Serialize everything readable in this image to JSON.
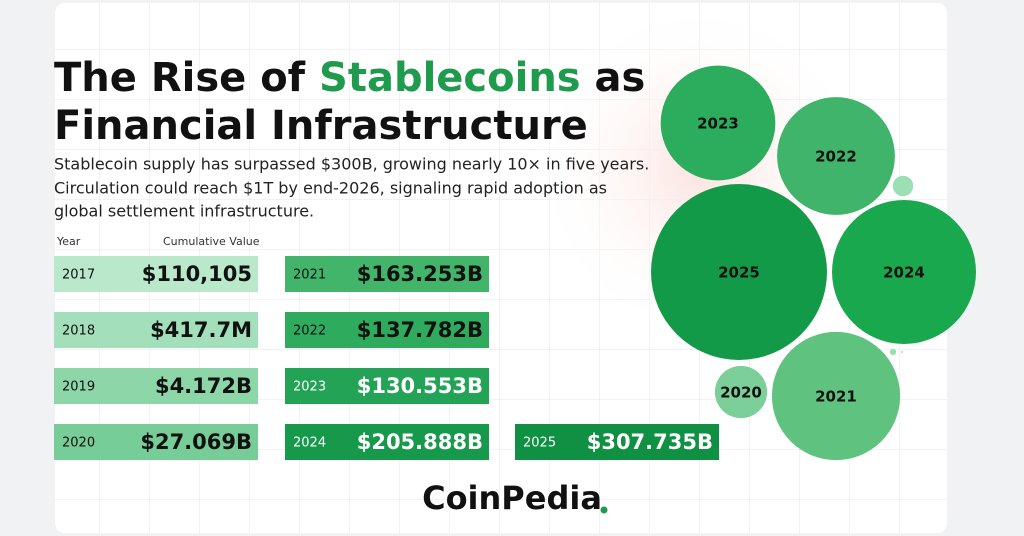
{
  "header": {
    "title_parts": [
      "The Rise of",
      "Stablecoins",
      "as",
      "Financial Infrastructure"
    ],
    "subtitle_lines": [
      "Stablecoin supply has surpassed $300B, growing nearly 10× in five years.",
      "Circulation could reach $1T by end-2026, signaling rapid adoption as",
      "global settlement infrastructure."
    ]
  },
  "table": {
    "headers": [
      "Year",
      "Cumulative Value"
    ],
    "rows": [
      {
        "year": "2017",
        "value": 110105,
        "label": "$110,105"
      },
      {
        "year": "2018",
        "value": 417700000,
        "label": "$417.7M"
      },
      {
        "year": "2019",
        "value": 4172000000,
        "label": "$4.172B"
      },
      {
        "year": "2020",
        "value": 27069000000,
        "label": "$27.069B"
      },
      {
        "year": "2021",
        "value": 163253000000,
        "label": "$163.253B"
      },
      {
        "year": "2022",
        "value": 137782000000,
        "label": "$137.782B"
      },
      {
        "year": "2023",
        "value": 130553000000,
        "label": "$130.553B"
      },
      {
        "year": "2024",
        "value": 205888000000,
        "label": "$205.888B"
      },
      {
        "year": "2025",
        "value": 307735000000,
        "label": "$307.735B"
      }
    ]
  },
  "logo": "CoinPedia"
}
